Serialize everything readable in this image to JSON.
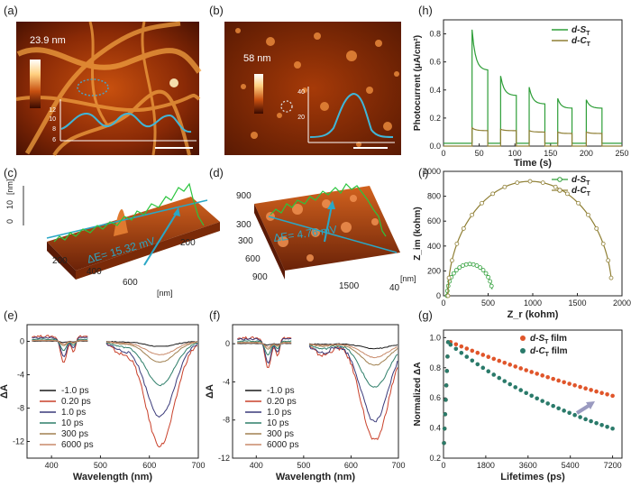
{
  "panels": {
    "a": {
      "label": "(a)",
      "height_label": "23.9 nm",
      "inset_ticks": [
        "12",
        "10",
        "8",
        "6"
      ]
    },
    "b": {
      "label": "(b)",
      "height_label": "58 nm",
      "inset_ticks": [
        "40",
        "20"
      ]
    },
    "c": {
      "label": "(c)",
      "z_label": "[nm]",
      "z_ticks": [
        "10",
        "0"
      ],
      "x_ticks": [
        "200",
        "400",
        "600"
      ],
      "y_ticks": [
        "200"
      ],
      "x_unit": "[nm]",
      "delta_e": "ΔE= 15.32 mV"
    },
    "d": {
      "label": "(d)",
      "z_label": "[nm]",
      "z_ticks": [
        "900",
        "300"
      ],
      "x_ticks": [
        "300",
        "600",
        "900",
        "1500"
      ],
      "y_ticks": [
        "40"
      ],
      "x_unit": "[nm]",
      "delta_e": "ΔE= 4.76 mV"
    },
    "e": {
      "label": "(e)"
    },
    "f": {
      "label": "(f)"
    },
    "h": {
      "label": "(h)"
    },
    "i": {
      "label": "(i)"
    },
    "g": {
      "label": "(g)"
    }
  },
  "colors": {
    "green": "#2e9e38",
    "olive": "#8f7f34",
    "teal": "#2a7a6a",
    "orange": "#e0552a",
    "cyan": "#2ab0c8"
  },
  "chart_data": [
    {
      "id": "h",
      "type": "line",
      "title": "",
      "xlabel": "Time (s)",
      "ylabel": "Photocurrent (μA/cm²)",
      "xlim": [
        0,
        250
      ],
      "ylim": [
        0,
        0.9
      ],
      "xticks": [
        0,
        50,
        100,
        150,
        200,
        250
      ],
      "yticks": [
        0.0,
        0.2,
        0.4,
        0.6,
        0.8
      ],
      "series": [
        {
          "name": "d-S_T",
          "legend_main": "d-S",
          "legend_sub": "T",
          "color": "#2e9e38",
          "cycles": [
            {
              "on": 40,
              "off": 62,
              "peak": 0.83,
              "plateau": 0.54
            },
            {
              "on": 80,
              "off": 102,
              "peak": 0.5,
              "plateau": 0.36
            },
            {
              "on": 120,
              "off": 142,
              "peak": 0.42,
              "plateau": 0.3
            },
            {
              "on": 160,
              "off": 180,
              "peak": 0.34,
              "plateau": 0.27
            },
            {
              "on": 200,
              "off": 222,
              "peak": 0.33,
              "plateau": 0.27
            }
          ],
          "baseline": 0.02
        },
        {
          "name": "d-C_T",
          "legend_main": "d-C",
          "legend_sub": "T",
          "color": "#8f7f34",
          "cycles": [
            {
              "on": 40,
              "off": 62,
              "peak": 0.13,
              "plateau": 0.11
            },
            {
              "on": 80,
              "off": 102,
              "peak": 0.12,
              "plateau": 0.11
            },
            {
              "on": 120,
              "off": 142,
              "peak": 0.11,
              "plateau": 0.1
            },
            {
              "on": 160,
              "off": 180,
              "peak": 0.1,
              "plateau": 0.09
            },
            {
              "on": 200,
              "off": 222,
              "peak": 0.1,
              "plateau": 0.09
            }
          ],
          "baseline": 0.0
        }
      ]
    },
    {
      "id": "i",
      "type": "scatter",
      "title": "",
      "xlabel": "Z_r (kohm)",
      "ylabel": "Z_im (kohm)",
      "xlim": [
        0,
        2000
      ],
      "ylim": [
        0,
        1000
      ],
      "xticks": [
        0,
        500,
        1000,
        1500,
        2000
      ],
      "yticks": [
        0,
        200,
        400,
        600,
        800,
        1000
      ],
      "series": [
        {
          "name": "d-S_T",
          "legend_main": "d-S",
          "legend_sub": "T",
          "color": "#2e9e38",
          "center": 295,
          "radius": 255,
          "arc_end": 545
        },
        {
          "name": "d-C_T",
          "legend_main": "d-C",
          "legend_sub": "T",
          "color": "#8f7f34",
          "center": 970,
          "radius": 920,
          "arc_end": 1880
        }
      ]
    },
    {
      "id": "g",
      "type": "scatter",
      "title": "",
      "xlabel": "Lifetimes (ps)",
      "ylabel": "Normalized ΔA",
      "xlim": [
        0,
        7600
      ],
      "ylim": [
        0.2,
        1.05
      ],
      "xticks": [
        0,
        1800,
        3600,
        5400,
        7200
      ],
      "yticks": [
        0.2,
        0.4,
        0.6,
        0.8,
        1.0
      ],
      "series": [
        {
          "name": "d-S_T film",
          "legend_main": "d-S",
          "legend_sub": "T",
          "legend_suffix": "film",
          "color": "#e0552a",
          "end_value": 0.62
        },
        {
          "name": "d-C_T film",
          "legend_main": "d-C",
          "legend_sub": "T",
          "legend_suffix": "film",
          "color": "#2a7a6a",
          "end_value": 0.4
        }
      ]
    },
    {
      "id": "e",
      "type": "line",
      "title": "",
      "xlabel": "Wavelength (nm)",
      "ylabel": "ΔA",
      "xlim": [
        350,
        700
      ],
      "ylim": [
        -14,
        2
      ],
      "xticks": [
        400,
        500,
        600,
        700
      ],
      "yticks": [
        0,
        -4,
        -8,
        -12
      ],
      "series": [
        {
          "name": "-1.0 ps",
          "color": "#1a1a1a",
          "amp": 0.05
        },
        {
          "name": "0.20 ps",
          "color": "#c9402a",
          "amp": 1.0
        },
        {
          "name": "1.0 ps",
          "color": "#3a3a7a",
          "amp": 0.72
        },
        {
          "name": "10 ps",
          "color": "#2f7f6a",
          "amp": 0.42
        },
        {
          "name": "300 ps",
          "color": "#a08050",
          "amp": 0.2
        },
        {
          "name": "6000 ps",
          "color": "#c88a6a",
          "amp": 0.13
        }
      ]
    },
    {
      "id": "f",
      "type": "line",
      "title": "",
      "xlabel": "Wavelength (nm)",
      "ylabel": "ΔA",
      "xlim": [
        350,
        700
      ],
      "ylim": [
        -12,
        2
      ],
      "xticks": [
        400,
        500,
        600,
        700
      ],
      "yticks": [
        0,
        -4,
        -8,
        -12
      ],
      "series": [
        {
          "name": "-1.0 ps",
          "color": "#1a1a1a",
          "amp": 0.05
        },
        {
          "name": "0.20 ps",
          "color": "#c9402a",
          "amp": 1.0
        },
        {
          "name": "1.0 ps",
          "color": "#3a3a7a",
          "amp": 0.8
        },
        {
          "name": "10 ps",
          "color": "#2f7f6a",
          "amp": 0.45
        },
        {
          "name": "300 ps",
          "color": "#a08050",
          "amp": 0.22
        },
        {
          "name": "6000 ps",
          "color": "#c88a6a",
          "amp": 0.14
        }
      ]
    }
  ]
}
